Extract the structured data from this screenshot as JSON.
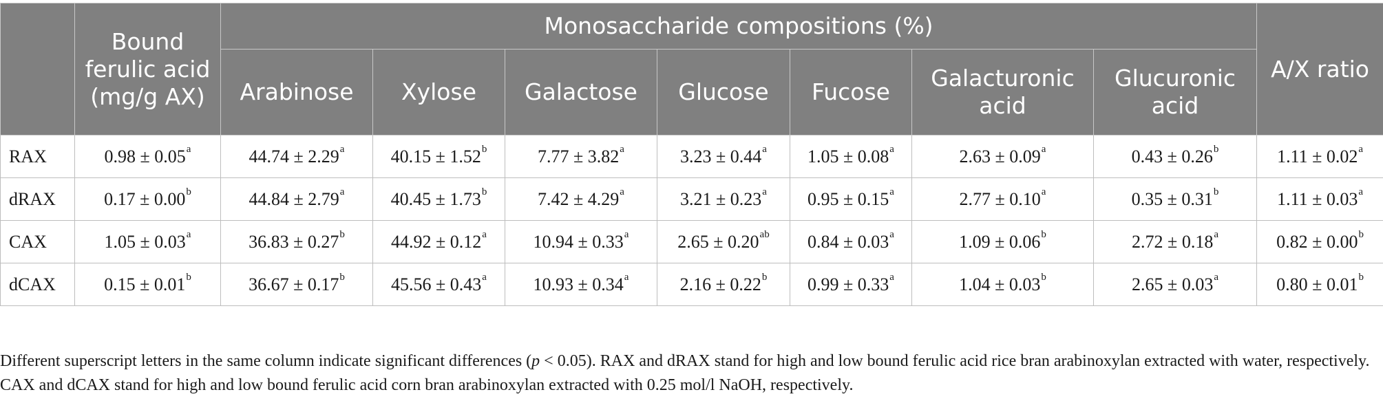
{
  "table": {
    "headers": {
      "bound_ferulic": "Bound ferulic acid (mg/g AX)",
      "mono_group": "Monosaccharide compositions (%)",
      "mono": [
        "Arabinose",
        "Xylose",
        "Galactose",
        "Glucose",
        "Fucose",
        "Galacturonic acid",
        "Glucuronic acid"
      ],
      "ax_ratio": "A/X ratio"
    },
    "rows": [
      {
        "label": "RAX",
        "cells": [
          {
            "v": "0.98 ± 0.05",
            "s": "a"
          },
          {
            "v": "44.74 ± 2.29",
            "s": "a"
          },
          {
            "v": "40.15 ± 1.52",
            "s": "b"
          },
          {
            "v": "7.77 ± 3.82",
            "s": "a"
          },
          {
            "v": "3.23 ± 0.44",
            "s": "a"
          },
          {
            "v": "1.05 ± 0.08",
            "s": "a"
          },
          {
            "v": "2.63 ± 0.09",
            "s": "a"
          },
          {
            "v": "0.43 ± 0.26",
            "s": "b"
          },
          {
            "v": "1.11 ± 0.02",
            "s": "a"
          }
        ]
      },
      {
        "label": "dRAX",
        "cells": [
          {
            "v": "0.17 ± 0.00",
            "s": "b"
          },
          {
            "v": "44.84 ± 2.79",
            "s": "a"
          },
          {
            "v": "40.45 ± 1.73",
            "s": "b"
          },
          {
            "v": "7.42 ± 4.29",
            "s": "a"
          },
          {
            "v": "3.21 ± 0.23",
            "s": "a"
          },
          {
            "v": "0.95 ± 0.15",
            "s": "a"
          },
          {
            "v": "2.77 ± 0.10",
            "s": "a"
          },
          {
            "v": "0.35 ± 0.31",
            "s": "b"
          },
          {
            "v": "1.11 ± 0.03",
            "s": "a"
          }
        ]
      },
      {
        "label": "CAX",
        "cells": [
          {
            "v": "1.05 ± 0.03",
            "s": "a"
          },
          {
            "v": "36.83 ± 0.27",
            "s": "b"
          },
          {
            "v": "44.92 ± 0.12",
            "s": "a"
          },
          {
            "v": "10.94 ± 0.33",
            "s": "a"
          },
          {
            "v": "2.65 ± 0.20",
            "s": "ab"
          },
          {
            "v": "0.84 ± 0.03",
            "s": "a"
          },
          {
            "v": "1.09 ± 0.06",
            "s": "b"
          },
          {
            "v": "2.72 ± 0.18",
            "s": "a"
          },
          {
            "v": "0.82 ± 0.00",
            "s": "b"
          }
        ]
      },
      {
        "label": "dCAX",
        "cells": [
          {
            "v": "0.15 ± 0.01",
            "s": "b"
          },
          {
            "v": "36.67 ± 0.17",
            "s": "b"
          },
          {
            "v": "45.56 ± 0.43",
            "s": "a"
          },
          {
            "v": "10.93 ± 0.34",
            "s": "a"
          },
          {
            "v": "2.16 ± 0.22",
            "s": "b"
          },
          {
            "v": "0.99 ± 0.33",
            "s": "a"
          },
          {
            "v": "1.04 ± 0.03",
            "s": "b"
          },
          {
            "v": "2.65 ± 0.03",
            "s": "a"
          },
          {
            "v": "0.80 ± 0.01",
            "s": "b"
          }
        ]
      }
    ]
  },
  "footnote": {
    "part1": "Different superscript letters in the same column indicate significant differences (",
    "p": "p",
    "part2": " < 0.05). RAX and dRAX stand for high and low bound ferulic acid rice bran arabinoxylan extracted with water, respectively. CAX and dCAX stand for high and low bound ferulic acid corn bran arabinoxylan extracted with 0.25 mol/l NaOH, respectively."
  }
}
